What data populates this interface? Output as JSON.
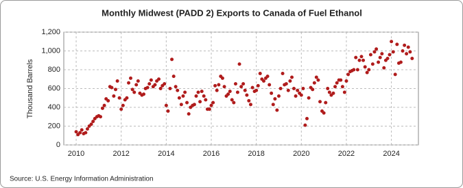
{
  "chart_data": {
    "type": "scatter",
    "title": "Monthly Midwest (PADD 2) Exports to Canada of Fuel Ethanol",
    "y_label": "Thousand Barrels",
    "source": "Source: U.S. Energy Information Administration",
    "color": "#b01c1c",
    "grid": true,
    "xlim": [
      2009.45,
      2025.2
    ],
    "ylim": [
      0,
      1200
    ],
    "xticks": [
      2010,
      2012,
      2014,
      2016,
      2018,
      2020,
      2022,
      2024
    ],
    "yticks": [
      0,
      200,
      400,
      600,
      800,
      {
        "value": 1000,
        "label": "1,000"
      },
      {
        "value": 1200,
        "label": "1,200"
      }
    ],
    "series": [
      {
        "name": "Exports",
        "color": "#b01c1c",
        "x": [
          2010.0,
          2010.08,
          2010.17,
          2010.25,
          2010.33,
          2010.42,
          2010.5,
          2010.58,
          2010.67,
          2010.75,
          2010.83,
          2010.92,
          2011.0,
          2011.08,
          2011.17,
          2011.25,
          2011.33,
          2011.42,
          2011.5,
          2011.58,
          2011.67,
          2011.75,
          2011.83,
          2011.92,
          2012.0,
          2012.08,
          2012.17,
          2012.25,
          2012.33,
          2012.42,
          2012.5,
          2012.58,
          2012.67,
          2012.75,
          2012.83,
          2012.92,
          2013.0,
          2013.08,
          2013.17,
          2013.25,
          2013.33,
          2013.42,
          2013.5,
          2013.58,
          2013.67,
          2013.75,
          2013.83,
          2013.92,
          2014.0,
          2014.08,
          2014.17,
          2014.25,
          2014.33,
          2014.42,
          2014.5,
          2014.58,
          2014.67,
          2014.75,
          2014.83,
          2014.92,
          2015.0,
          2015.08,
          2015.17,
          2015.25,
          2015.33,
          2015.42,
          2015.5,
          2015.58,
          2015.67,
          2015.75,
          2015.83,
          2015.92,
          2016.0,
          2016.08,
          2016.17,
          2016.25,
          2016.33,
          2016.42,
          2016.5,
          2016.58,
          2016.67,
          2016.75,
          2016.83,
          2016.92,
          2017.0,
          2017.08,
          2017.17,
          2017.25,
          2017.33,
          2017.42,
          2017.5,
          2017.58,
          2017.67,
          2017.75,
          2017.83,
          2017.92,
          2018.0,
          2018.08,
          2018.17,
          2018.25,
          2018.33,
          2018.42,
          2018.5,
          2018.58,
          2018.67,
          2018.75,
          2018.83,
          2018.92,
          2019.0,
          2019.08,
          2019.17,
          2019.25,
          2019.33,
          2019.42,
          2019.5,
          2019.58,
          2019.67,
          2019.75,
          2019.83,
          2019.92,
          2020.0,
          2020.08,
          2020.17,
          2020.25,
          2020.33,
          2020.42,
          2020.5,
          2020.58,
          2020.67,
          2020.75,
          2020.83,
          2020.92,
          2021.0,
          2021.08,
          2021.17,
          2021.25,
          2021.33,
          2021.42,
          2021.5,
          2021.58,
          2021.67,
          2021.75,
          2021.83,
          2021.92,
          2022.0,
          2022.08,
          2022.17,
          2022.25,
          2022.33,
          2022.42,
          2022.5,
          2022.58,
          2022.67,
          2022.75,
          2022.83,
          2022.92,
          2023.0,
          2023.08,
          2023.17,
          2023.25,
          2023.33,
          2023.42,
          2023.5,
          2023.58,
          2023.67,
          2023.75,
          2023.83,
          2023.92,
          2024.0,
          2024.08,
          2024.17,
          2024.25,
          2024.33,
          2024.42,
          2024.5,
          2024.58,
          2024.67,
          2024.75,
          2024.83,
          2024.92
        ],
        "values": [
          140,
          110,
          130,
          160,
          120,
          130,
          170,
          200,
          220,
          250,
          280,
          300,
          310,
          300,
          390,
          420,
          490,
          470,
          620,
          610,
          520,
          590,
          680,
          500,
          380,
          420,
          480,
          500,
          660,
          710,
          590,
          560,
          640,
          680,
          550,
          530,
          540,
          600,
          610,
          650,
          690,
          620,
          640,
          680,
          700,
          600,
          630,
          650,
          420,
          360,
          600,
          910,
          730,
          620,
          580,
          500,
          430,
          520,
          560,
          450,
          330,
          400,
          420,
          430,
          520,
          560,
          460,
          570,
          520,
          480,
          380,
          380,
          420,
          450,
          630,
          580,
          640,
          730,
          710,
          620,
          520,
          540,
          570,
          480,
          450,
          650,
          560,
          860,
          620,
          650,
          580,
          530,
          470,
          430,
          610,
          570,
          580,
          630,
          760,
          700,
          680,
          710,
          730,
          640,
          550,
          430,
          490,
          370,
          520,
          600,
          760,
          640,
          650,
          580,
          680,
          720,
          600,
          520,
          580,
          550,
          530,
          600,
          210,
          280,
          500,
          610,
          590,
          660,
          720,
          690,
          460,
          360,
          340,
          450,
          600,
          560,
          530,
          550,
          620,
          660,
          690,
          690,
          620,
          560,
          680,
          750,
          780,
          790,
          800,
          930,
          800,
          900,
          940,
          900,
          830,
          770,
          800,
          960,
          860,
          990,
          1020,
          880,
          930,
          970,
          820,
          900,
          920,
          960,
          1100,
          990,
          750,
          1070,
          870,
          880,
          1000,
          1060,
          970,
          1040,
          990,
          920
        ]
      }
    ]
  }
}
